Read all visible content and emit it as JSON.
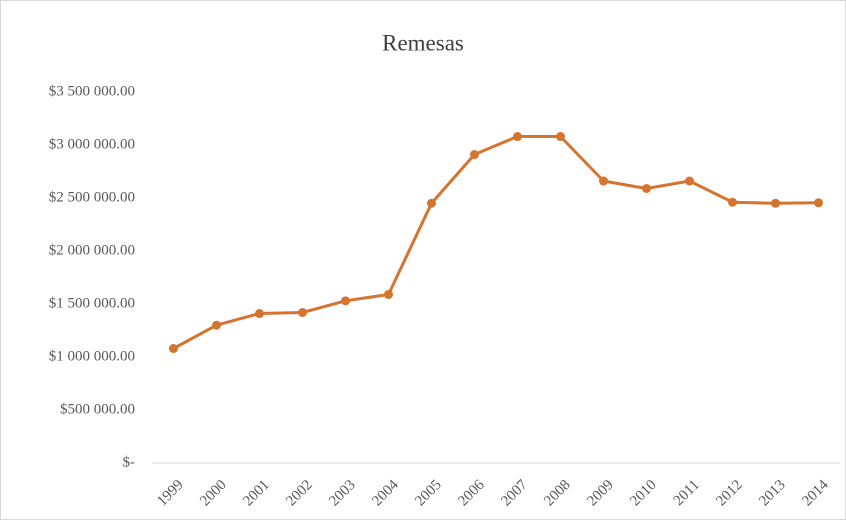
{
  "chart_data": {
    "type": "line",
    "title": "Remesas",
    "categories": [
      "1999",
      "2000",
      "2001",
      "2002",
      "2003",
      "2004",
      "2005",
      "2006",
      "2007",
      "2008",
      "2009",
      "2010",
      "2011",
      "2012",
      "2013",
      "2014"
    ],
    "values": [
      1080000,
      1300000,
      1410000,
      1420000,
      1530000,
      1590000,
      2450000,
      2910000,
      3080000,
      3080000,
      2660000,
      2590000,
      2660000,
      2460000,
      2450000,
      2455000
    ],
    "color": "#d5742e",
    "ylim": [
      0,
      3500000
    ],
    "yticks": [
      {
        "value": 0,
        "label": "$-"
      },
      {
        "value": 500000,
        "label": "$500 000.00"
      },
      {
        "value": 1000000,
        "label": "$1 000 000.00"
      },
      {
        "value": 1500000,
        "label": "$1 500 000.00"
      },
      {
        "value": 2000000,
        "label": "$2 000 000.00"
      },
      {
        "value": 2500000,
        "label": "$2 500 000.00"
      },
      {
        "value": 3000000,
        "label": "$3 000 000.00"
      },
      {
        "value": 3500000,
        "label": "$3 500 000.00"
      }
    ],
    "grid": false
  }
}
